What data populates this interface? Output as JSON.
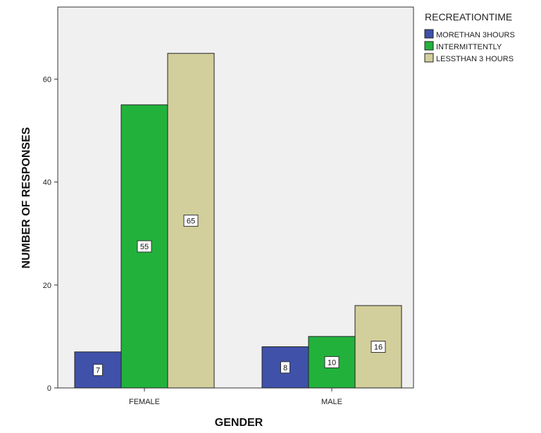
{
  "chart_data": {
    "type": "bar",
    "categories": [
      "FEMALE",
      "MALE"
    ],
    "series": [
      {
        "name": "MORETHAN 3HOURS",
        "color": "#3f51a9",
        "values": [
          7,
          8
        ]
      },
      {
        "name": "INTERMITTENTLY",
        "color": "#22b23c",
        "values": [
          55,
          10
        ]
      },
      {
        "name": "LESSTHAN 3 HOURS",
        "color": "#d3cf9c",
        "values": [
          65,
          16
        ]
      }
    ],
    "xlabel": "GENDER",
    "ylabel": "NUMBER OF RESPONSES",
    "legend_title": "RECREATIONTIME",
    "legend_position": "top-right",
    "ylim": [
      0,
      74
    ],
    "yticks": [
      0,
      20,
      40,
      60
    ],
    "plot_background": "#f0f0f0",
    "grid": false
  }
}
